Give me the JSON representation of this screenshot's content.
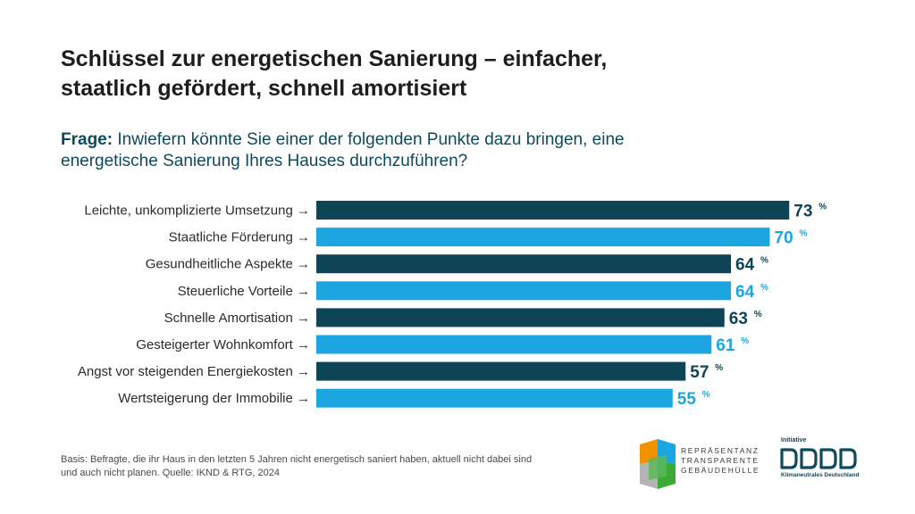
{
  "title": {
    "line1": "Schlüssel zur energetischen Sanierung – einfacher,",
    "line2": "staatlich gefördert, schnell amortisiert"
  },
  "question": {
    "lead": "Frage:",
    "line1": " Inwiefern könnte Sie einer der folgenden Punkte dazu bringen, eine",
    "line2": "energetische Sanierung Ihres Hauses durchzuführen?"
  },
  "chart_data": {
    "type": "bar",
    "orientation": "horizontal",
    "categories": [
      "Leichte, unkomplizierte Umsetzung →",
      "Staatliche Förderung →",
      "Gesundheitliche Aspekte →",
      "Steuerliche Vorteile →",
      "Schnelle Amortisation →",
      "Gesteigerter Wohnkomfort →",
      "Angst vor steigenden Energiekosten →",
      "Wertsteigerung der Immobilie →"
    ],
    "values": [
      73,
      70,
      64,
      64,
      63,
      61,
      57,
      55
    ],
    "unit": "%",
    "colors": [
      "#0d4556",
      "#1ba6e2",
      "#0d4556",
      "#1ba6e2",
      "#0d4556",
      "#1ba6e2",
      "#0d4556",
      "#1ba6e2"
    ],
    "xlim": [
      0,
      100
    ],
    "grid": false,
    "legend": "none"
  },
  "footnote": {
    "line1": "Basis: Befragte, die ihr Haus in den letzten 5 Jahren nicht energetisch saniert haben, aktuell nicht dabei sind",
    "line2": "und auch nicht planen. Quelle: IKND & RTG, 2024"
  },
  "logos": {
    "rtg": {
      "line1": "REPRÄSENTANZ",
      "line2": "TRANSPARENTE",
      "line3": "GEBÄUDEHÜLLE"
    },
    "iknd": {
      "pre": "Initiative",
      "sub": "Klimaneutrales Deutschland"
    }
  }
}
